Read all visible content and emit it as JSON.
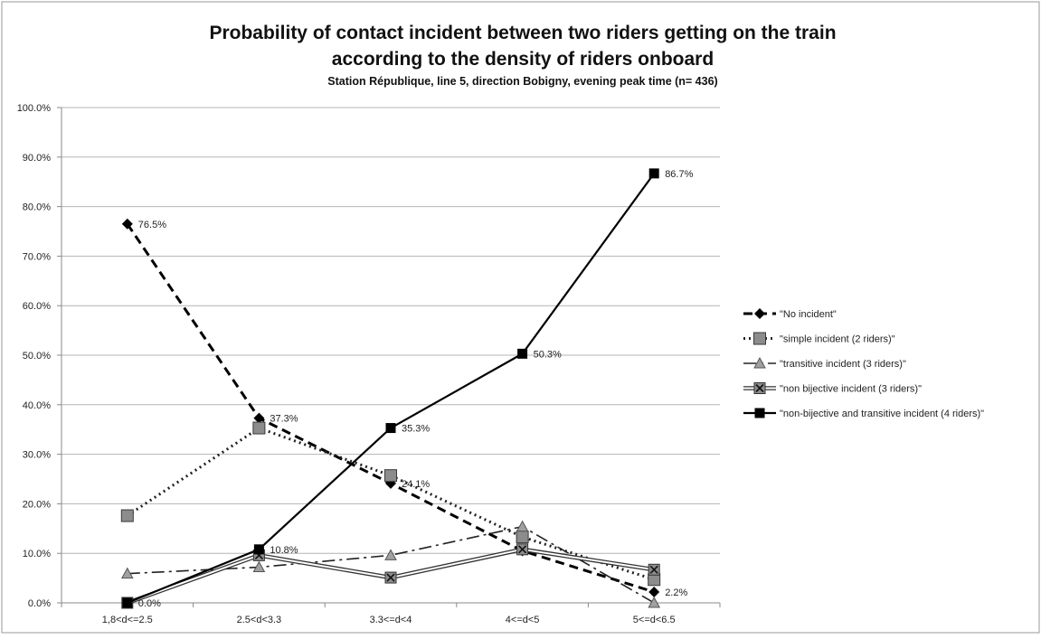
{
  "chart_data": {
    "type": "line",
    "title_line1": "Probability of contact incident between two riders getting on the train",
    "title_line2": "according to the density of riders onboard",
    "subtitle": "Station République, line 5, direction Bobigny, evening peak time (n= 436)",
    "xlabel": "",
    "ylabel": "",
    "ylim": [
      0,
      100
    ],
    "y_ticks": [
      "0.0%",
      "10.0%",
      "20.0%",
      "30.0%",
      "40.0%",
      "50.0%",
      "60.0%",
      "70.0%",
      "80.0%",
      "90.0%",
      "100.0%"
    ],
    "categories": [
      "1,8<d<=2.5",
      "2.5<d<3.3",
      "3.3<=d<4",
      "4<=d<5",
      "5<=d<6.5"
    ],
    "grid": true,
    "legend_position": "right",
    "series": [
      {
        "name": "\"No incident\"",
        "values": [
          76.5,
          37.3,
          24.1,
          10.5,
          2.2
        ],
        "color": "#000000",
        "dash": "10,6",
        "width": 3,
        "marker": "diamond",
        "labels": [
          "76.5%",
          "37.3%",
          "24.1%",
          "",
          "2.2%"
        ]
      },
      {
        "name": "\"simple incident (2 riders)\"",
        "values": [
          17.6,
          35.3,
          25.7,
          13.3,
          4.7
        ],
        "color": "#222222",
        "dash": "2,4",
        "width": 3,
        "marker": "square-gray",
        "labels": [
          "",
          "",
          "",
          "",
          ""
        ]
      },
      {
        "name": "\"transitive incident (3 riders)\"",
        "values": [
          5.9,
          7.2,
          9.6,
          15.4,
          0.0
        ],
        "color": "#222222",
        "dash": "14,5,3,5",
        "width": 1.6,
        "marker": "triangle",
        "labels": [
          "",
          "",
          "",
          "",
          ""
        ]
      },
      {
        "name": "\"non bijective incident (3 riders)\"",
        "values": [
          0.0,
          9.6,
          5.1,
          10.8,
          6.7
        ],
        "color": "#333333",
        "dash": "",
        "width": 1.4,
        "double": true,
        "marker": "x-square",
        "labels": [
          "",
          "",
          "",
          "",
          ""
        ]
      },
      {
        "name": "\"non-bijective and transitive incident (4 riders)\"",
        "values": [
          0.0,
          10.8,
          35.3,
          50.3,
          86.7
        ],
        "color": "#000000",
        "dash": "",
        "width": 2.2,
        "marker": "square-black",
        "labels": [
          "0.0%",
          "10.8%",
          "35.3%",
          "50.3%",
          "86.7%"
        ]
      }
    ]
  }
}
